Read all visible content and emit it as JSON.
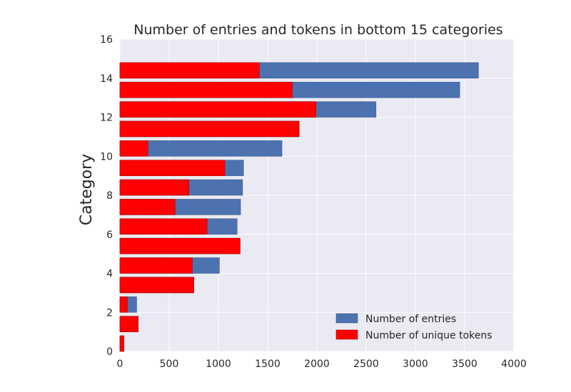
{
  "chart_data": {
    "type": "bar",
    "orientation": "horizontal",
    "title": "Number of entries and tokens in bottom 15 categories",
    "xlabel": "",
    "ylabel": "Category",
    "xlim": [
      0,
      4000
    ],
    "ylim": [
      0,
      16
    ],
    "xticks": [
      "0",
      "500",
      "1000",
      "1500",
      "2000",
      "2500",
      "3000",
      "3500",
      "4000"
    ],
    "yticks": [
      "0",
      "2",
      "4",
      "6",
      "8",
      "10",
      "12",
      "14",
      "16"
    ],
    "grid": true,
    "legend_position": "lower-right",
    "categories": [
      0,
      1,
      2,
      3,
      4,
      5,
      6,
      7,
      8,
      9,
      10,
      11,
      12,
      13,
      14
    ],
    "series": [
      {
        "name": "Number of entries",
        "color": "#4c72b0",
        "values": [
          40,
          185,
          170,
          750,
          1010,
          1220,
          1190,
          1225,
          1245,
          1255,
          1645,
          1820,
          2600,
          3450,
          3640
        ]
      },
      {
        "name": "Number of unique tokens",
        "color": "#ff0000",
        "values": [
          40,
          185,
          75,
          750,
          735,
          1220,
          885,
          560,
          700,
          1065,
          285,
          1820,
          1990,
          1750,
          1415
        ]
      }
    ]
  }
}
